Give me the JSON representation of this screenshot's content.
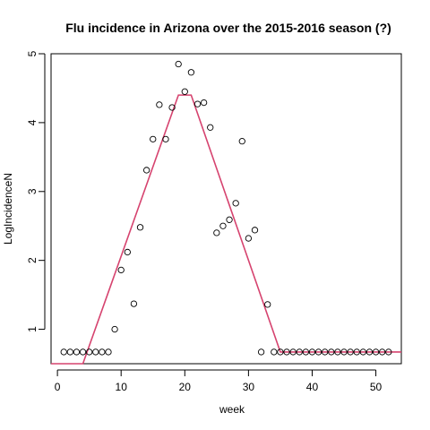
{
  "chart_data": {
    "type": "scatter",
    "title": "Flu incidence in Arizona over the 2015-2016 season (?)",
    "xlabel": "week",
    "ylabel": "LogIncidenceN",
    "xlim": [
      -1,
      54
    ],
    "ylim": [
      0.5,
      5.0
    ],
    "xticks": [
      0,
      10,
      20,
      30,
      40,
      50
    ],
    "yticks": [
      1,
      2,
      3,
      4,
      5
    ],
    "grid": false,
    "legend": "none",
    "points": {
      "x": [
        1,
        2,
        3,
        4,
        5,
        6,
        7,
        8,
        9,
        10,
        11,
        12,
        13,
        14,
        15,
        16,
        17,
        18,
        19,
        20,
        21,
        22,
        23,
        24,
        25,
        26,
        27,
        28,
        29,
        30,
        31,
        32,
        33,
        34,
        35,
        36,
        37,
        38,
        39,
        40,
        41,
        42,
        43,
        44,
        45,
        46,
        47,
        48,
        49,
        50,
        51,
        52
      ],
      "y": [
        0.67,
        0.67,
        0.67,
        0.67,
        0.67,
        0.67,
        0.67,
        0.67,
        1.0,
        1.86,
        2.12,
        1.37,
        2.48,
        3.31,
        3.76,
        4.26,
        3.76,
        4.22,
        4.85,
        4.45,
        4.73,
        4.27,
        4.29,
        3.93,
        2.4,
        2.5,
        2.59,
        2.83,
        3.73,
        2.32,
        2.44,
        0.67,
        1.36,
        0.67,
        0.67,
        0.67,
        0.67,
        0.67,
        0.67,
        0.67,
        0.67,
        0.67,
        0.67,
        0.67,
        0.67,
        0.67,
        0.67,
        0.67,
        0.67,
        0.67,
        0.67,
        0.67
      ],
      "color": "#000000"
    },
    "fit_line": {
      "x": [
        -1,
        4,
        19,
        21,
        35,
        54
      ],
      "y": [
        0.5,
        0.5,
        4.4,
        4.4,
        0.67,
        0.67
      ],
      "color": "#D6436F"
    }
  }
}
